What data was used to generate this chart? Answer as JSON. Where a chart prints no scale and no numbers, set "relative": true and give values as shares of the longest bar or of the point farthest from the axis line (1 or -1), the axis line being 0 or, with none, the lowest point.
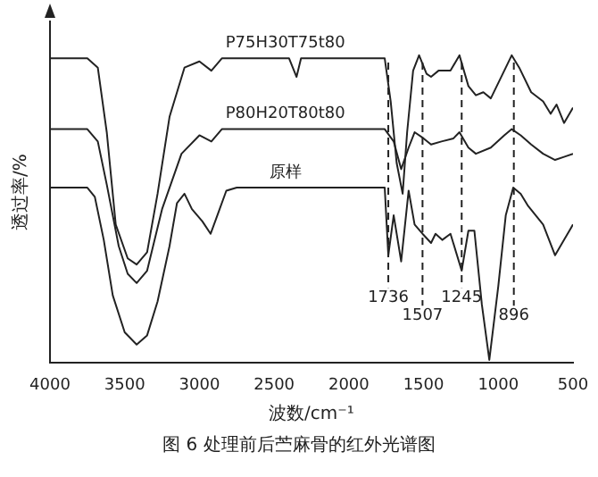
{
  "chart_data": {
    "type": "line",
    "relative": true,
    "title": "图 6 处理前后苎麻骨的红外光谱图",
    "xlabel": "波数/cm⁻¹",
    "ylabel": "透过率/%",
    "xlim": [
      4000,
      500
    ],
    "xticks": [
      4000,
      3500,
      3000,
      2500,
      2000,
      1500,
      1000,
      500
    ],
    "tick_labels": "x",
    "line_style": "solid",
    "series": [
      {
        "name": "P75H30T75t80",
        "color": "#222222",
        "x": [
          4000,
          3750,
          3680,
          3620,
          3560,
          3480,
          3420,
          3350,
          3280,
          3200,
          3100,
          3000,
          2920,
          2850,
          2400,
          2350,
          2320,
          1760,
          1720,
          1680,
          1640,
          1610,
          1570,
          1530,
          1480,
          1450,
          1400,
          1320,
          1260,
          1200,
          1150,
          1100,
          1050,
          960,
          910,
          860,
          780,
          700,
          650,
          610,
          560,
          500
        ],
        "values": [
          0.99,
          0.99,
          0.96,
          0.75,
          0.45,
          0.34,
          0.32,
          0.36,
          0.55,
          0.8,
          0.96,
          0.98,
          0.95,
          0.99,
          0.99,
          0.93,
          0.99,
          0.99,
          0.85,
          0.65,
          0.55,
          0.75,
          0.95,
          1.0,
          0.94,
          0.93,
          0.95,
          0.95,
          1.0,
          0.9,
          0.87,
          0.88,
          0.86,
          0.95,
          1.0,
          0.96,
          0.88,
          0.85,
          0.81,
          0.84,
          0.78,
          0.83
        ]
      },
      {
        "name": "P80H20T80t80",
        "color": "#222222",
        "x": [
          4000,
          3750,
          3680,
          3620,
          3540,
          3480,
          3420,
          3350,
          3250,
          3120,
          3000,
          2920,
          2850,
          1760,
          1700,
          1650,
          1600,
          1560,
          1500,
          1450,
          1380,
          1300,
          1260,
          1200,
          1150,
          1050,
          960,
          910,
          850,
          780,
          700,
          620,
          560,
          500
        ],
        "values": [
          0.76,
          0.76,
          0.72,
          0.58,
          0.38,
          0.29,
          0.26,
          0.3,
          0.5,
          0.68,
          0.74,
          0.72,
          0.76,
          0.76,
          0.72,
          0.63,
          0.7,
          0.75,
          0.73,
          0.71,
          0.72,
          0.73,
          0.75,
          0.7,
          0.68,
          0.7,
          0.74,
          0.76,
          0.74,
          0.71,
          0.68,
          0.66,
          0.67,
          0.68
        ]
      },
      {
        "name": "原样",
        "color": "#222222",
        "x": [
          4000,
          3750,
          3700,
          3640,
          3580,
          3500,
          3420,
          3350,
          3280,
          3200,
          3150,
          3100,
          3050,
          2980,
          2925,
          2880,
          2820,
          2750,
          1760,
          1736,
          1700,
          1650,
          1600,
          1560,
          1507,
          1450,
          1420,
          1375,
          1320,
          1245,
          1200,
          1160,
          1110,
          1060,
          1000,
          950,
          900,
          850,
          800,
          700,
          620,
          560,
          500
        ],
        "values": [
          0.57,
          0.57,
          0.54,
          0.4,
          0.22,
          0.1,
          0.06,
          0.09,
          0.2,
          0.38,
          0.52,
          0.55,
          0.5,
          0.46,
          0.42,
          0.48,
          0.56,
          0.57,
          0.57,
          0.35,
          0.48,
          0.33,
          0.56,
          0.45,
          0.42,
          0.39,
          0.42,
          0.4,
          0.42,
          0.3,
          0.43,
          0.43,
          0.19,
          0.01,
          0.25,
          0.48,
          0.57,
          0.55,
          0.51,
          0.45,
          0.35,
          0.4,
          0.45
        ]
      }
    ],
    "ref_lines": [
      {
        "axis": "x",
        "value": 1736,
        "label": "1736",
        "line_style": "dashed"
      },
      {
        "axis": "x",
        "value": 1507,
        "label": "1507",
        "line_style": "dashed"
      },
      {
        "axis": "x",
        "value": 1245,
        "label": "1245",
        "line_style": "dashed"
      },
      {
        "axis": "x",
        "value": 896,
        "label": "896",
        "line_style": "dashed"
      }
    ]
  }
}
